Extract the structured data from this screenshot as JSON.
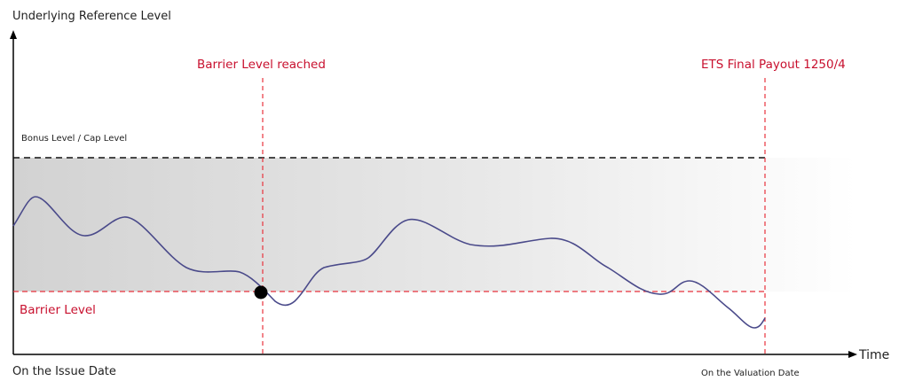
{
  "labels": {
    "y_axis": "Underlying Reference Level",
    "x_axis": "Time",
    "barrier_reached": "Barrier Level reached",
    "final_payout": "ETS Final Payout 1250/4",
    "bonus_cap": "Bonus Level / Cap Level",
    "barrier_level": "Barrier Level",
    "issue_date": "On the Issue Date",
    "valuation_date": "On the Valuation Date"
  },
  "colors": {
    "barrier": "#e8323c",
    "accent_text": "#c8102e",
    "path": "#4a4a8a",
    "cap_line": "#111111",
    "band_start": "#d0d0d0"
  }
}
